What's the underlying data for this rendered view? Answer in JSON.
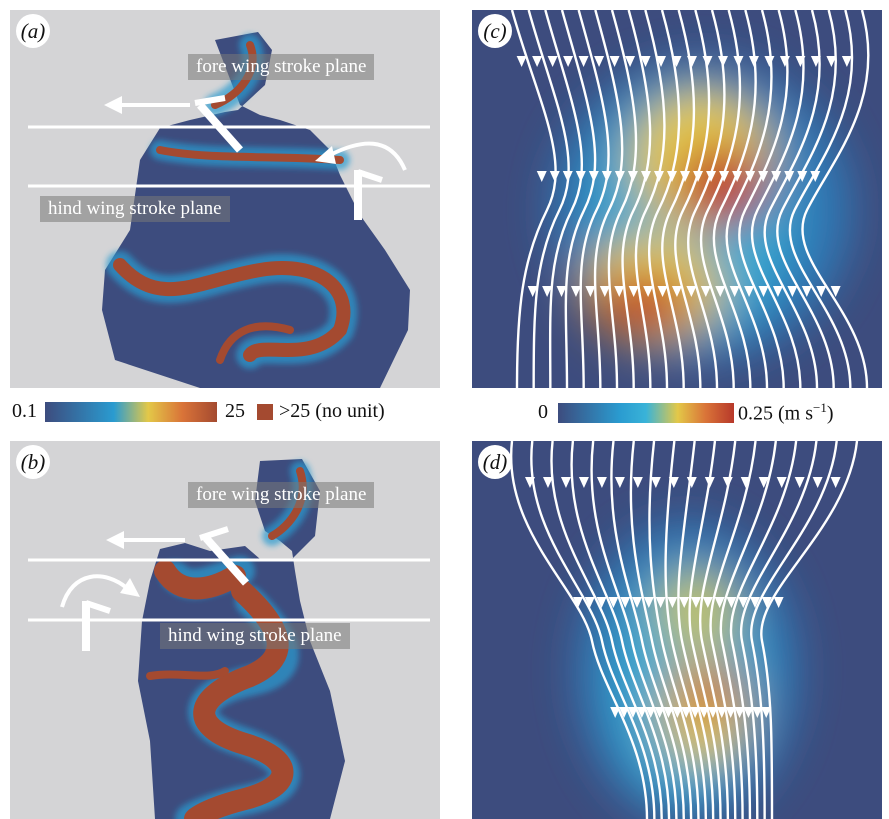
{
  "panels": {
    "a": {
      "label": "(a)",
      "fore_label": "fore wing stroke plane",
      "hind_label": "hind wing stroke plane"
    },
    "b": {
      "label": "(b)",
      "fore_label": "fore wing stroke plane",
      "hind_label": "hind wing stroke plane"
    },
    "c": {
      "label": "(c)"
    },
    "d": {
      "label": "(d)"
    }
  },
  "colorbar_left": {
    "min_label": "0.1",
    "max_label": "25",
    "over_label": ">25 (no unit)",
    "over_color": "#a44a30"
  },
  "colorbar_right": {
    "min_label": "0",
    "max_label": "0.25 (m s",
    "unit_exp": "−1",
    "unit_close": ")"
  },
  "colors": {
    "background_gray": "#d4d4d6",
    "field_dark": "#3d4c7e",
    "vortex_brown": "#a44a30",
    "streamline": "#ffffff"
  }
}
